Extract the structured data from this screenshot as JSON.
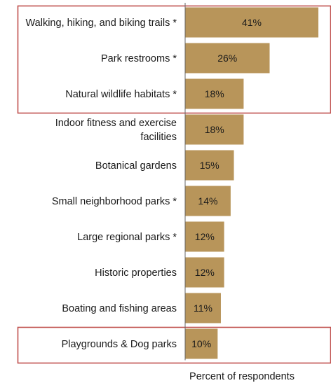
{
  "chart_data": {
    "type": "bar",
    "orientation": "horizontal",
    "categories": [
      [
        "Walking, hiking, and biking trails *"
      ],
      [
        "Park restrooms *"
      ],
      [
        "Natural wildlife habitats *"
      ],
      [
        "Indoor fitness and exercise",
        "facilities"
      ],
      [
        "Botanical gardens"
      ],
      [
        "Small neighborhood parks *"
      ],
      [
        "Large regional parks *"
      ],
      [
        "Historic properties"
      ],
      [
        "Boating and fishing areas"
      ],
      [
        "Playgrounds & Dog parks"
      ]
    ],
    "values": [
      41,
      26,
      18,
      18,
      15,
      14,
      12,
      12,
      11,
      10
    ],
    "value_labels": [
      "41%",
      "26%",
      "18%",
      "18%",
      "15%",
      "14%",
      "12%",
      "12%",
      "11%",
      "10%"
    ],
    "xlabel": "Percent of respondents",
    "xlim": [
      0,
      45
    ],
    "highlighted_groups": [
      [
        0,
        1,
        2
      ],
      [
        9
      ]
    ],
    "colors": {
      "bar": "#b8955a",
      "highlight_border": "#c0504d",
      "axis_line": "#666666"
    }
  }
}
